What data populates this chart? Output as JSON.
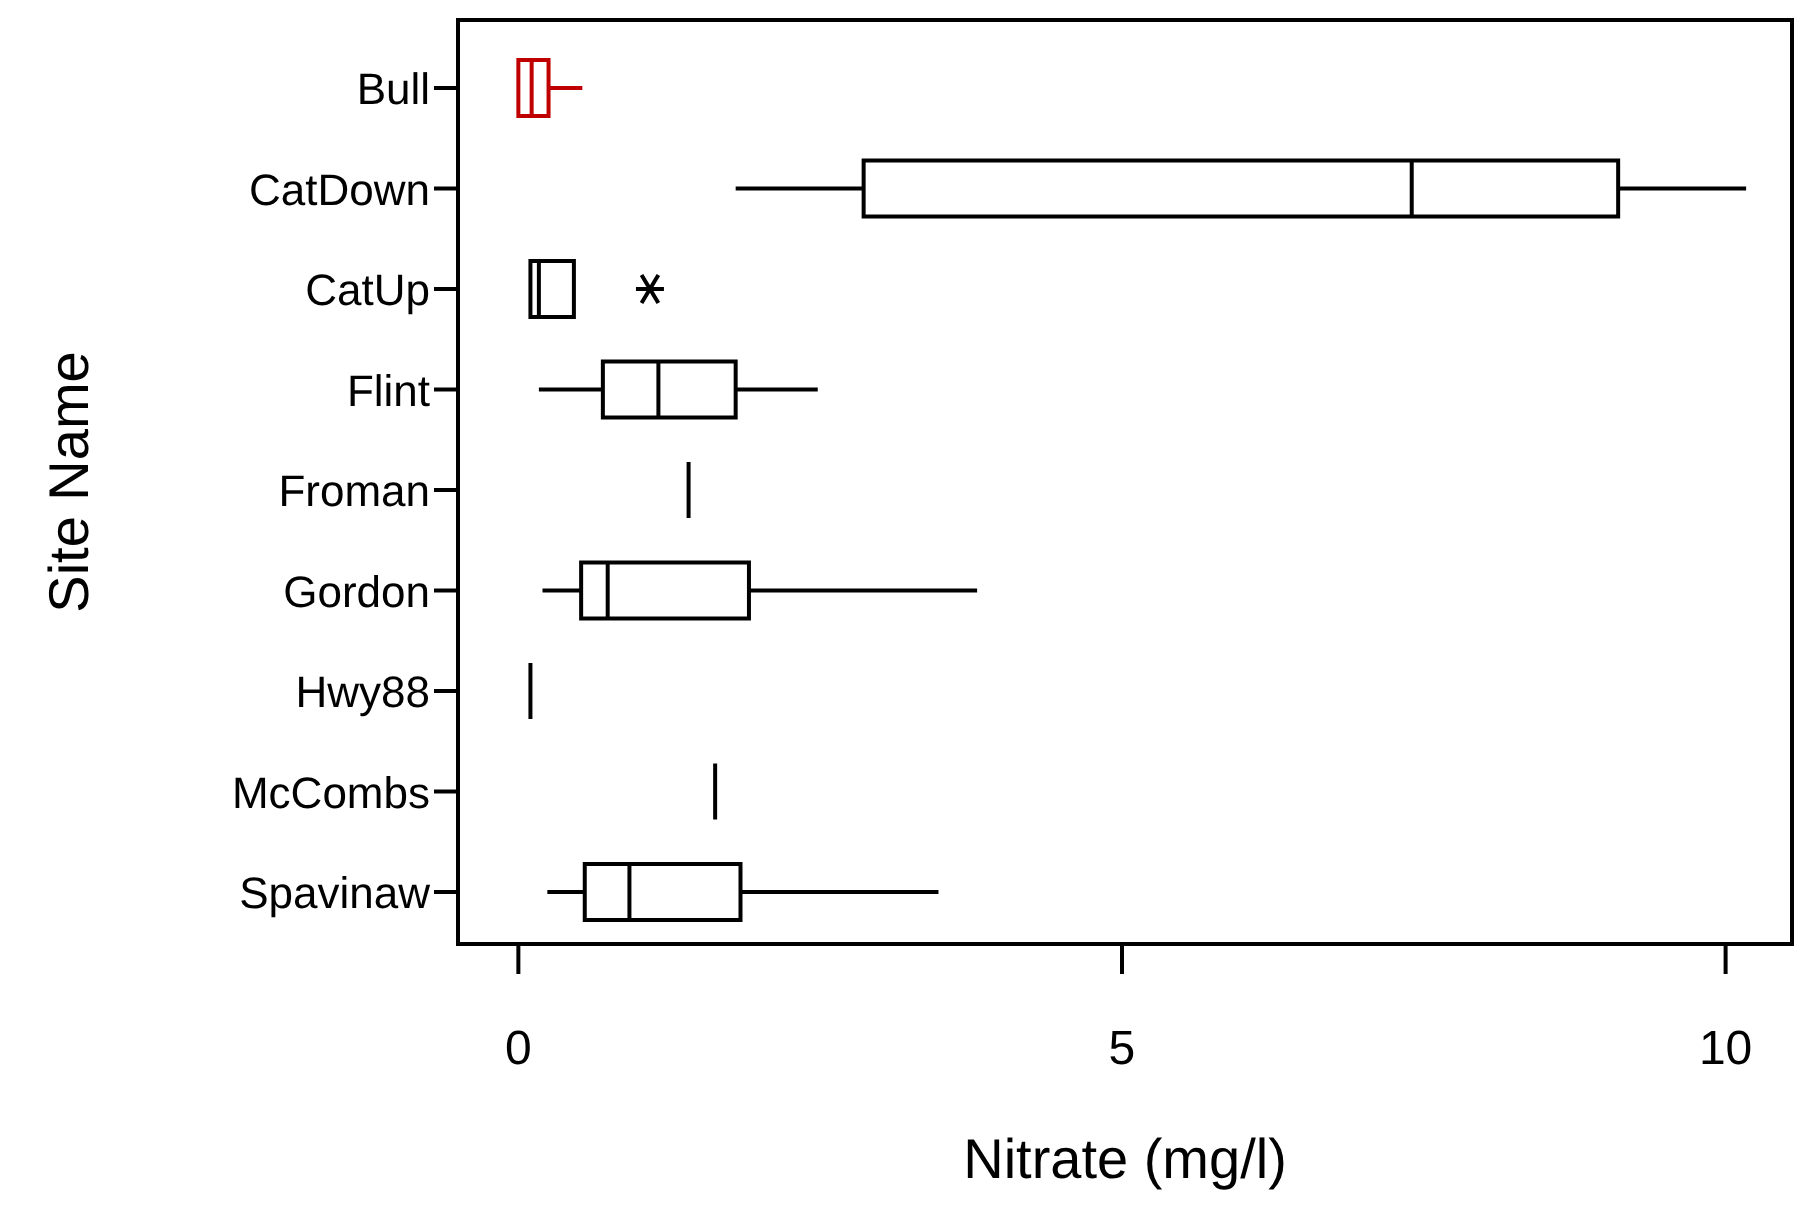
{
  "chart_data": {
    "type": "box",
    "orientation": "horizontal",
    "xlabel": "Nitrate (mg/l)",
    "ylabel": "Site Name",
    "categories": [
      "Bull",
      "CatDown",
      "CatUp",
      "Flint",
      "Froman",
      "Gordon",
      "Hwy88",
      "McCombs",
      "Spavinaw"
    ],
    "colors": [
      "#c00000",
      "#000000",
      "#000000",
      "#000000",
      "#000000",
      "#000000",
      "#000000",
      "#000000",
      "#000000"
    ],
    "boxes": [
      {
        "low": 0,
        "q1": 0,
        "median": 0.11,
        "q3": 0.25,
        "high": 0.53
      },
      {
        "low": 1.8,
        "q1": 2.86,
        "median": 7.4,
        "q3": 9.11,
        "high": 10.17
      },
      {
        "low": 0.1,
        "q1": 0.1,
        "median": 0.17,
        "q3": 0.46,
        "high": 0.46,
        "outliers": [
          1.09
        ]
      },
      {
        "low": 0.17,
        "q1": 0.7,
        "median": 1.16,
        "q3": 1.8,
        "high": 2.48
      },
      {
        "low": 1.41,
        "q1": 1.41,
        "median": 1.41,
        "q3": 1.41,
        "high": 1.41
      },
      {
        "low": 0.2,
        "q1": 0.52,
        "median": 0.74,
        "q3": 1.91,
        "high": 3.8
      },
      {
        "low": 0.1,
        "q1": 0.1,
        "median": 0.1,
        "q3": 0.1,
        "high": 0.1
      },
      {
        "low": 1.63,
        "q1": 1.63,
        "median": 1.63,
        "q3": 1.63,
        "high": 1.63
      },
      {
        "low": 0.24,
        "q1": 0.55,
        "median": 0.92,
        "q3": 1.84,
        "high": 3.48
      }
    ],
    "xlim": [
      -0.5,
      10.55
    ],
    "xticks": [
      0,
      5,
      10
    ],
    "grid": false,
    "marker": "cross"
  }
}
